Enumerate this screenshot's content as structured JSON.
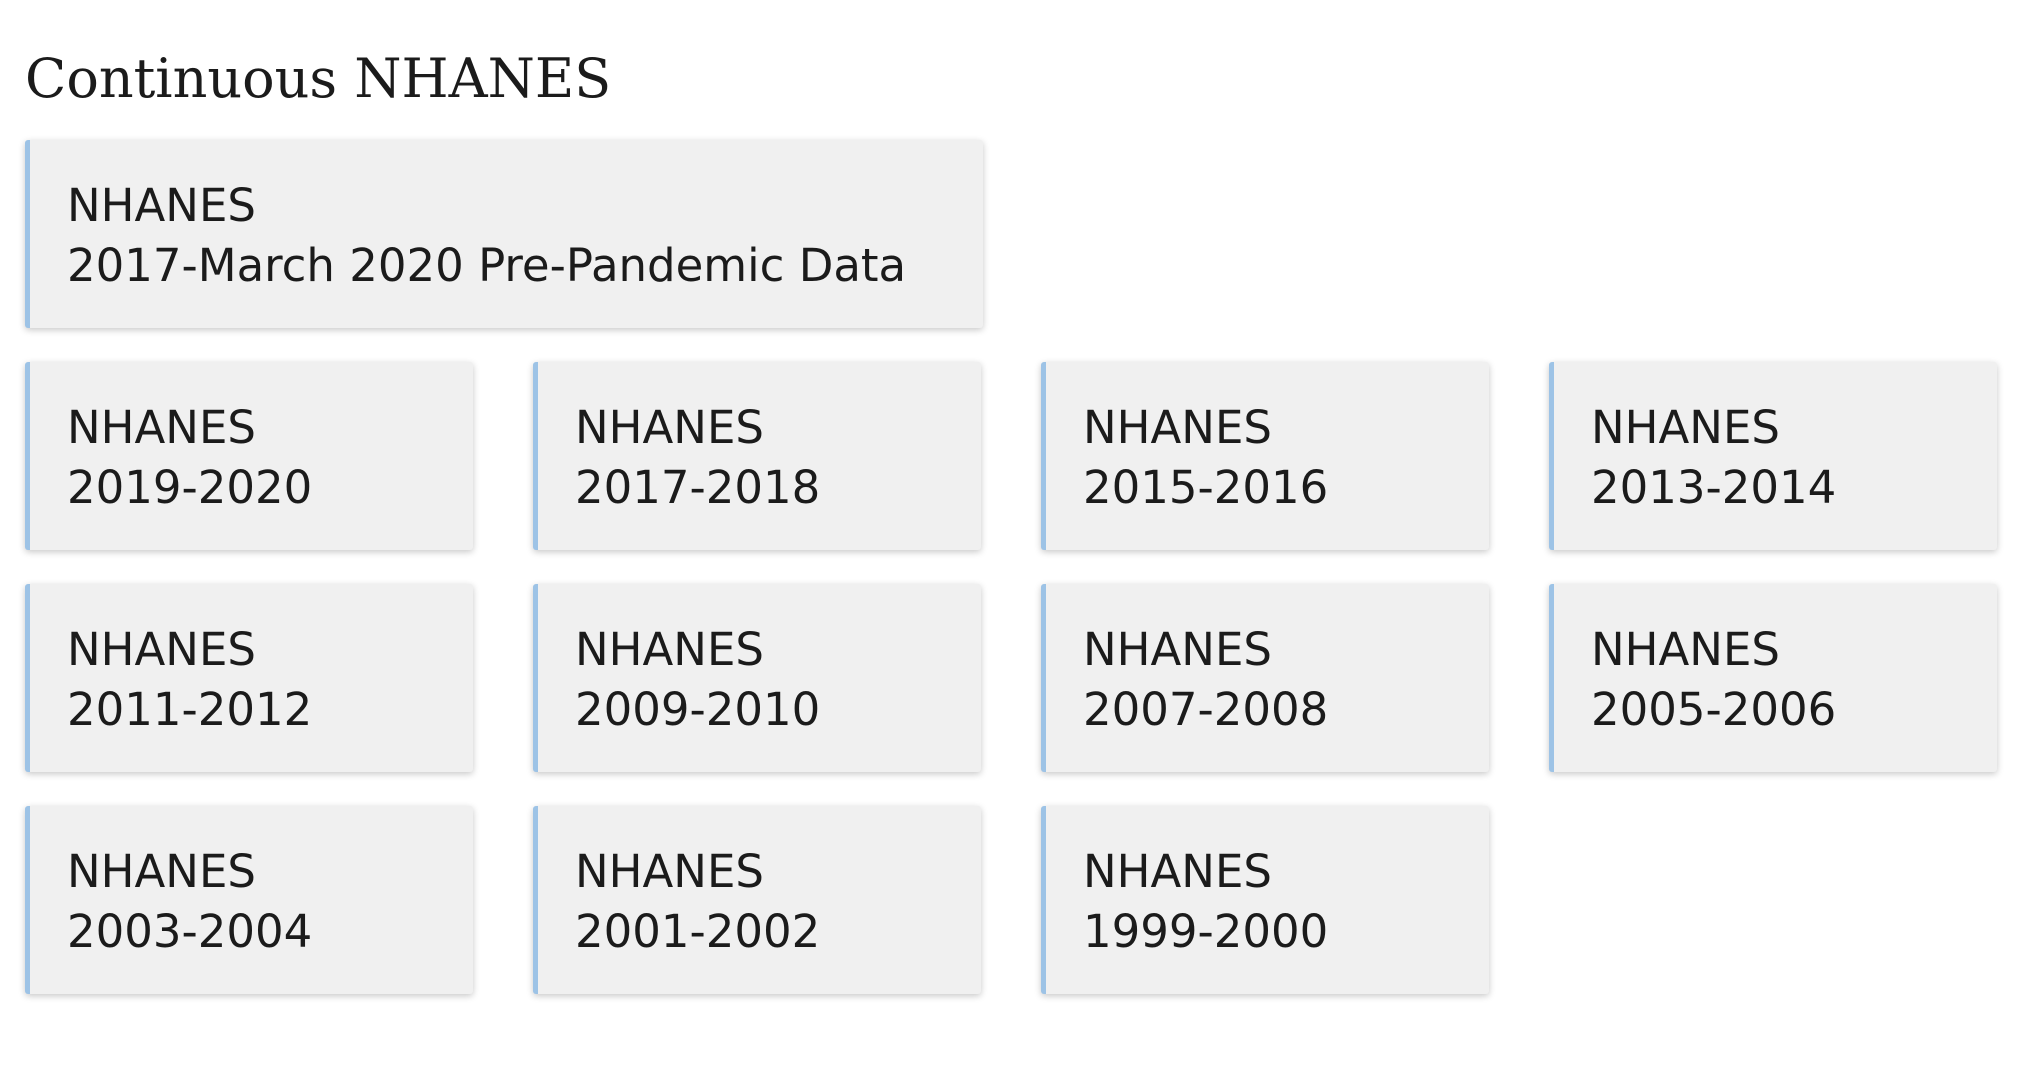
{
  "section": {
    "title": "Continuous NHANES"
  },
  "featured": {
    "line1": "NHANES",
    "line2": "2017-March 2020 Pre-Pandemic Data"
  },
  "cycles": [
    {
      "line1": "NHANES",
      "line2": "2019-2020"
    },
    {
      "line1": "NHANES",
      "line2": "2017-2018"
    },
    {
      "line1": "NHANES",
      "line2": "2015-2016"
    },
    {
      "line1": "NHANES",
      "line2": "2013-2014"
    },
    {
      "line1": "NHANES",
      "line2": "2011-2012"
    },
    {
      "line1": "NHANES",
      "line2": "2009-2010"
    },
    {
      "line1": "NHANES",
      "line2": "2007-2008"
    },
    {
      "line1": "NHANES",
      "line2": "2005-2006"
    },
    {
      "line1": "NHANES",
      "line2": "2003-2004"
    },
    {
      "line1": "NHANES",
      "line2": "2001-2002"
    },
    {
      "line1": "NHANES",
      "line2": "1999-2000"
    }
  ],
  "colors": {
    "card_background": "#f0f0f0",
    "card_accent": "#9dc3e6",
    "text": "#1b1b1b"
  }
}
